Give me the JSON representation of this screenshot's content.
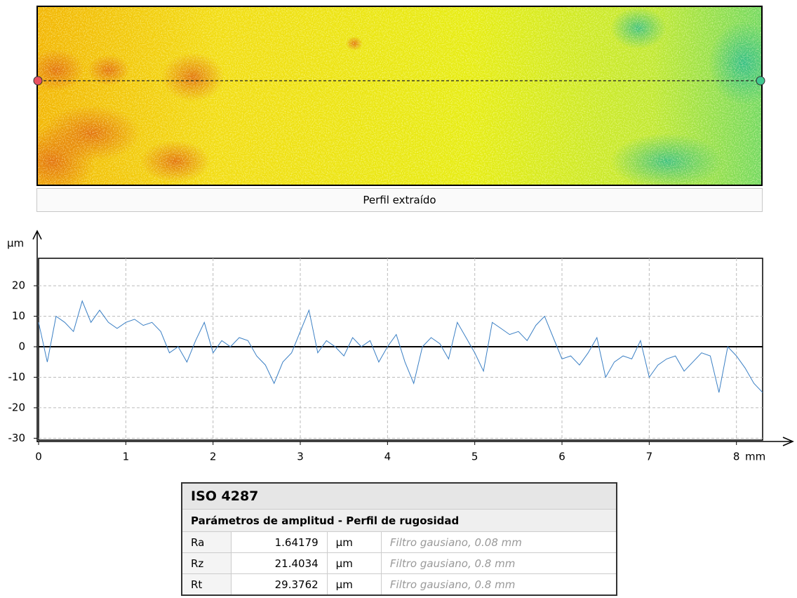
{
  "heightmap": {
    "button": "Perfil extraído"
  },
  "chart_data": {
    "type": "line",
    "y_label": "µm",
    "x_unit": "mm",
    "color": "#3a7fc4",
    "grid": true,
    "x": [
      0,
      0.1,
      0.2,
      0.3,
      0.4,
      0.5,
      0.6,
      0.7,
      0.8,
      0.9,
      1,
      1.1,
      1.2,
      1.3,
      1.4,
      1.5,
      1.6,
      1.7,
      1.8,
      1.9,
      2,
      2.1,
      2.2,
      2.3,
      2.4,
      2.5,
      2.6,
      2.7,
      2.8,
      2.9,
      3,
      3.1,
      3.2,
      3.3,
      3.4,
      3.5,
      3.6,
      3.7,
      3.8,
      3.9,
      4,
      4.1,
      4.2,
      4.3,
      4.4,
      4.5,
      4.6,
      4.7,
      4.8,
      4.9,
      5,
      5.1,
      5.2,
      5.3,
      5.4,
      5.5,
      5.6,
      5.7,
      5.8,
      5.9,
      6,
      6.1,
      6.2,
      6.3,
      6.4,
      6.5,
      6.6,
      6.7,
      6.8,
      6.9,
      7,
      7.1,
      7.2,
      7.3,
      7.4,
      7.5,
      7.6,
      7.7,
      7.8,
      7.9,
      8,
      8.1,
      8.2,
      8.3
    ],
    "values": [
      8,
      -5,
      10,
      8,
      5,
      15,
      8,
      12,
      8,
      6,
      8,
      9,
      7,
      8,
      5,
      -2,
      0,
      -5,
      2,
      8,
      -2,
      2,
      0,
      3,
      2,
      -3,
      -6,
      -12,
      -5,
      -2,
      5,
      12,
      -2,
      2,
      0,
      -3,
      3,
      0,
      2,
      -5,
      0,
      4,
      -5,
      -12,
      0,
      3,
      1,
      -4,
      8,
      3,
      -2,
      -8,
      8,
      6,
      4,
      5,
      2,
      7,
      10,
      3,
      -4,
      -3,
      -6,
      -2,
      3,
      -10,
      -5,
      -3,
      -4,
      2,
      -10,
      -6,
      -4,
      -3,
      -8,
      -5,
      -2,
      -3,
      -15,
      0,
      -3,
      -7,
      -12,
      -15
    ],
    "xlim": [
      0,
      8.3
    ],
    "xticks": [
      0,
      1,
      2,
      3,
      4,
      5,
      6,
      7,
      8
    ],
    "ylim": [
      -30.6,
      29
    ],
    "yticks": [
      -30,
      -20,
      -10,
      0,
      10,
      20
    ]
  },
  "table": {
    "title": "ISO 4287",
    "subtitle": "Parámetros de amplitud - Perfil de rugosidad",
    "rows": [
      [
        "Ra",
        "1.64179",
        "µm",
        "Filtro gausiano, 0.08 mm"
      ],
      [
        "Rz",
        "21.4034",
        "µm",
        "Filtro gausiano, 0.8 mm"
      ],
      [
        "Rt",
        "29.3762",
        "µm",
        "Filtro gausiano, 0.8 mm"
      ]
    ]
  }
}
